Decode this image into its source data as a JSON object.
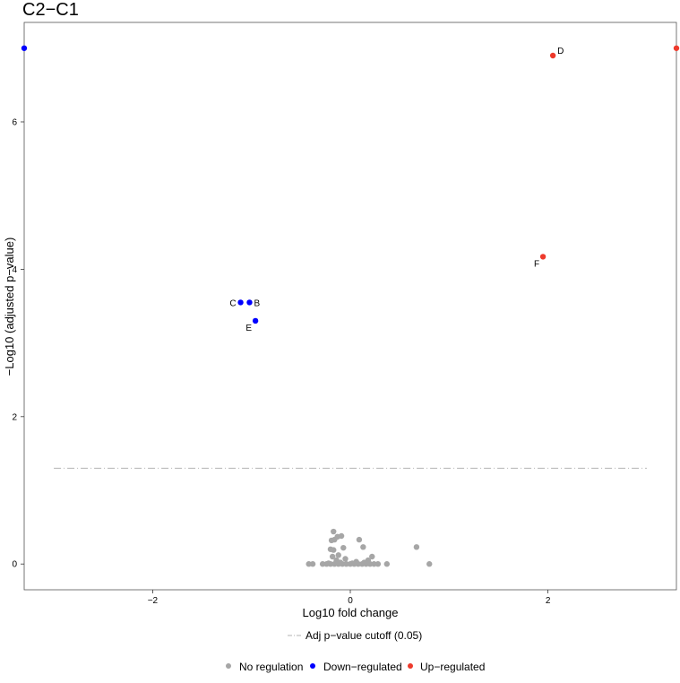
{
  "chart_data": {
    "type": "scatter",
    "title": "C2−C1",
    "xlabel": "Log10 fold change",
    "ylabel": "−Log10 (adjusted p−value)",
    "xlim": [
      -3.3,
      3.3
    ],
    "ylim": [
      -0.35,
      7.35
    ],
    "x_ticks": [
      -2,
      0,
      2
    ],
    "y_ticks": [
      0,
      2,
      4,
      6
    ],
    "x_tick_labels": [
      "−2",
      "0",
      "2"
    ],
    "y_tick_labels": [
      "0",
      "2",
      "4",
      "6"
    ],
    "grid": false,
    "legend_position": "bottom",
    "colors": {
      "no_regulation": "#a6a6a6",
      "down": "#0000ff",
      "up": "#ee3a2c",
      "cutoff_line": "#b3b3b3"
    },
    "cutoff": {
      "label": "Adj p−value cutoff (0.05)",
      "y": 1.3,
      "x_range": [
        -3,
        3
      ]
    },
    "legend": [
      {
        "label": "No regulation",
        "group": "no_regulation"
      },
      {
        "label": "Down−regulated",
        "group": "down"
      },
      {
        "label": "Up−regulated",
        "group": "up"
      }
    ],
    "series": [
      {
        "name": "No regulation",
        "group": "no_regulation",
        "points": [
          [
            -0.42,
            0
          ],
          [
            -0.38,
            0
          ],
          [
            -0.28,
            0
          ],
          [
            -0.24,
            0
          ],
          [
            -0.2,
            0
          ],
          [
            -0.16,
            0
          ],
          [
            -0.12,
            0
          ],
          [
            -0.08,
            0
          ],
          [
            -0.04,
            0
          ],
          [
            0.0,
            0
          ],
          [
            0.04,
            0
          ],
          [
            0.08,
            0
          ],
          [
            0.12,
            0
          ],
          [
            0.16,
            0
          ],
          [
            0.2,
            0
          ],
          [
            0.24,
            0
          ],
          [
            0.28,
            0
          ],
          [
            0.37,
            0
          ],
          [
            0.8,
            0
          ],
          [
            -0.22,
            0.01
          ],
          [
            -0.1,
            0.02
          ],
          [
            0.02,
            0.01
          ],
          [
            0.14,
            0.02
          ],
          [
            -0.14,
            0.05
          ],
          [
            0.06,
            0.03
          ],
          [
            -0.05,
            0.07
          ],
          [
            0.18,
            0.05
          ],
          [
            -0.18,
            0.1
          ],
          [
            -0.12,
            0.12
          ],
          [
            0.22,
            0.1
          ],
          [
            -0.2,
            0.2
          ],
          [
            -0.17,
            0.19
          ],
          [
            -0.07,
            0.22
          ],
          [
            0.13,
            0.23
          ],
          [
            0.67,
            0.23
          ],
          [
            -0.19,
            0.32
          ],
          [
            -0.16,
            0.33
          ],
          [
            0.09,
            0.33
          ],
          [
            -0.13,
            0.37
          ],
          [
            -0.09,
            0.38
          ],
          [
            -0.17,
            0.44
          ]
        ]
      },
      {
        "name": "Down−regulated",
        "group": "down",
        "points": [
          [
            -3.3,
            7.0
          ],
          [
            -1.11,
            3.55
          ],
          [
            -1.02,
            3.55
          ],
          [
            -0.96,
            3.3
          ]
        ]
      },
      {
        "name": "Up−regulated",
        "group": "up",
        "points": [
          [
            2.05,
            6.9
          ],
          [
            1.95,
            4.17
          ],
          [
            3.3,
            7.0
          ]
        ]
      }
    ],
    "annotations": [
      {
        "text": "B",
        "x": -1.02,
        "y": 3.55,
        "anchor": "right"
      },
      {
        "text": "C",
        "x": -1.11,
        "y": 3.55,
        "anchor": "left"
      },
      {
        "text": "D",
        "x": 2.05,
        "y": 6.9,
        "anchor": "upper-right"
      },
      {
        "text": "E",
        "x": -0.96,
        "y": 3.3,
        "anchor": "lower-left"
      },
      {
        "text": "F",
        "x": 1.95,
        "y": 4.17,
        "anchor": "lower-left"
      }
    ]
  }
}
